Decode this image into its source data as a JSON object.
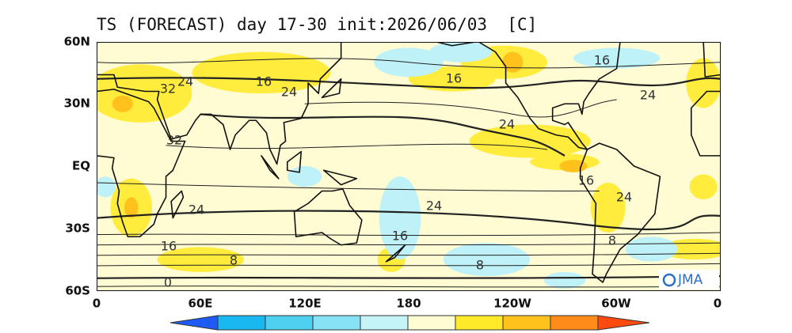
{
  "title": "TS (FORECAST) day 17-30 init:2026/06/03  [C]",
  "lat_labels": [
    "60N",
    "30N",
    "EQ",
    "30S",
    "60S"
  ],
  "lon_labels": [
    "0",
    "60E",
    "120E",
    "180",
    "120W",
    "60W",
    "0"
  ],
  "contour_labels": [
    "32",
    "24",
    "16",
    "24",
    "16",
    "16",
    "24",
    "24",
    "32",
    "24",
    "24",
    "16",
    "16",
    "8",
    "8",
    "16",
    "24",
    "8",
    "0"
  ],
  "logo": "JMA"
}
